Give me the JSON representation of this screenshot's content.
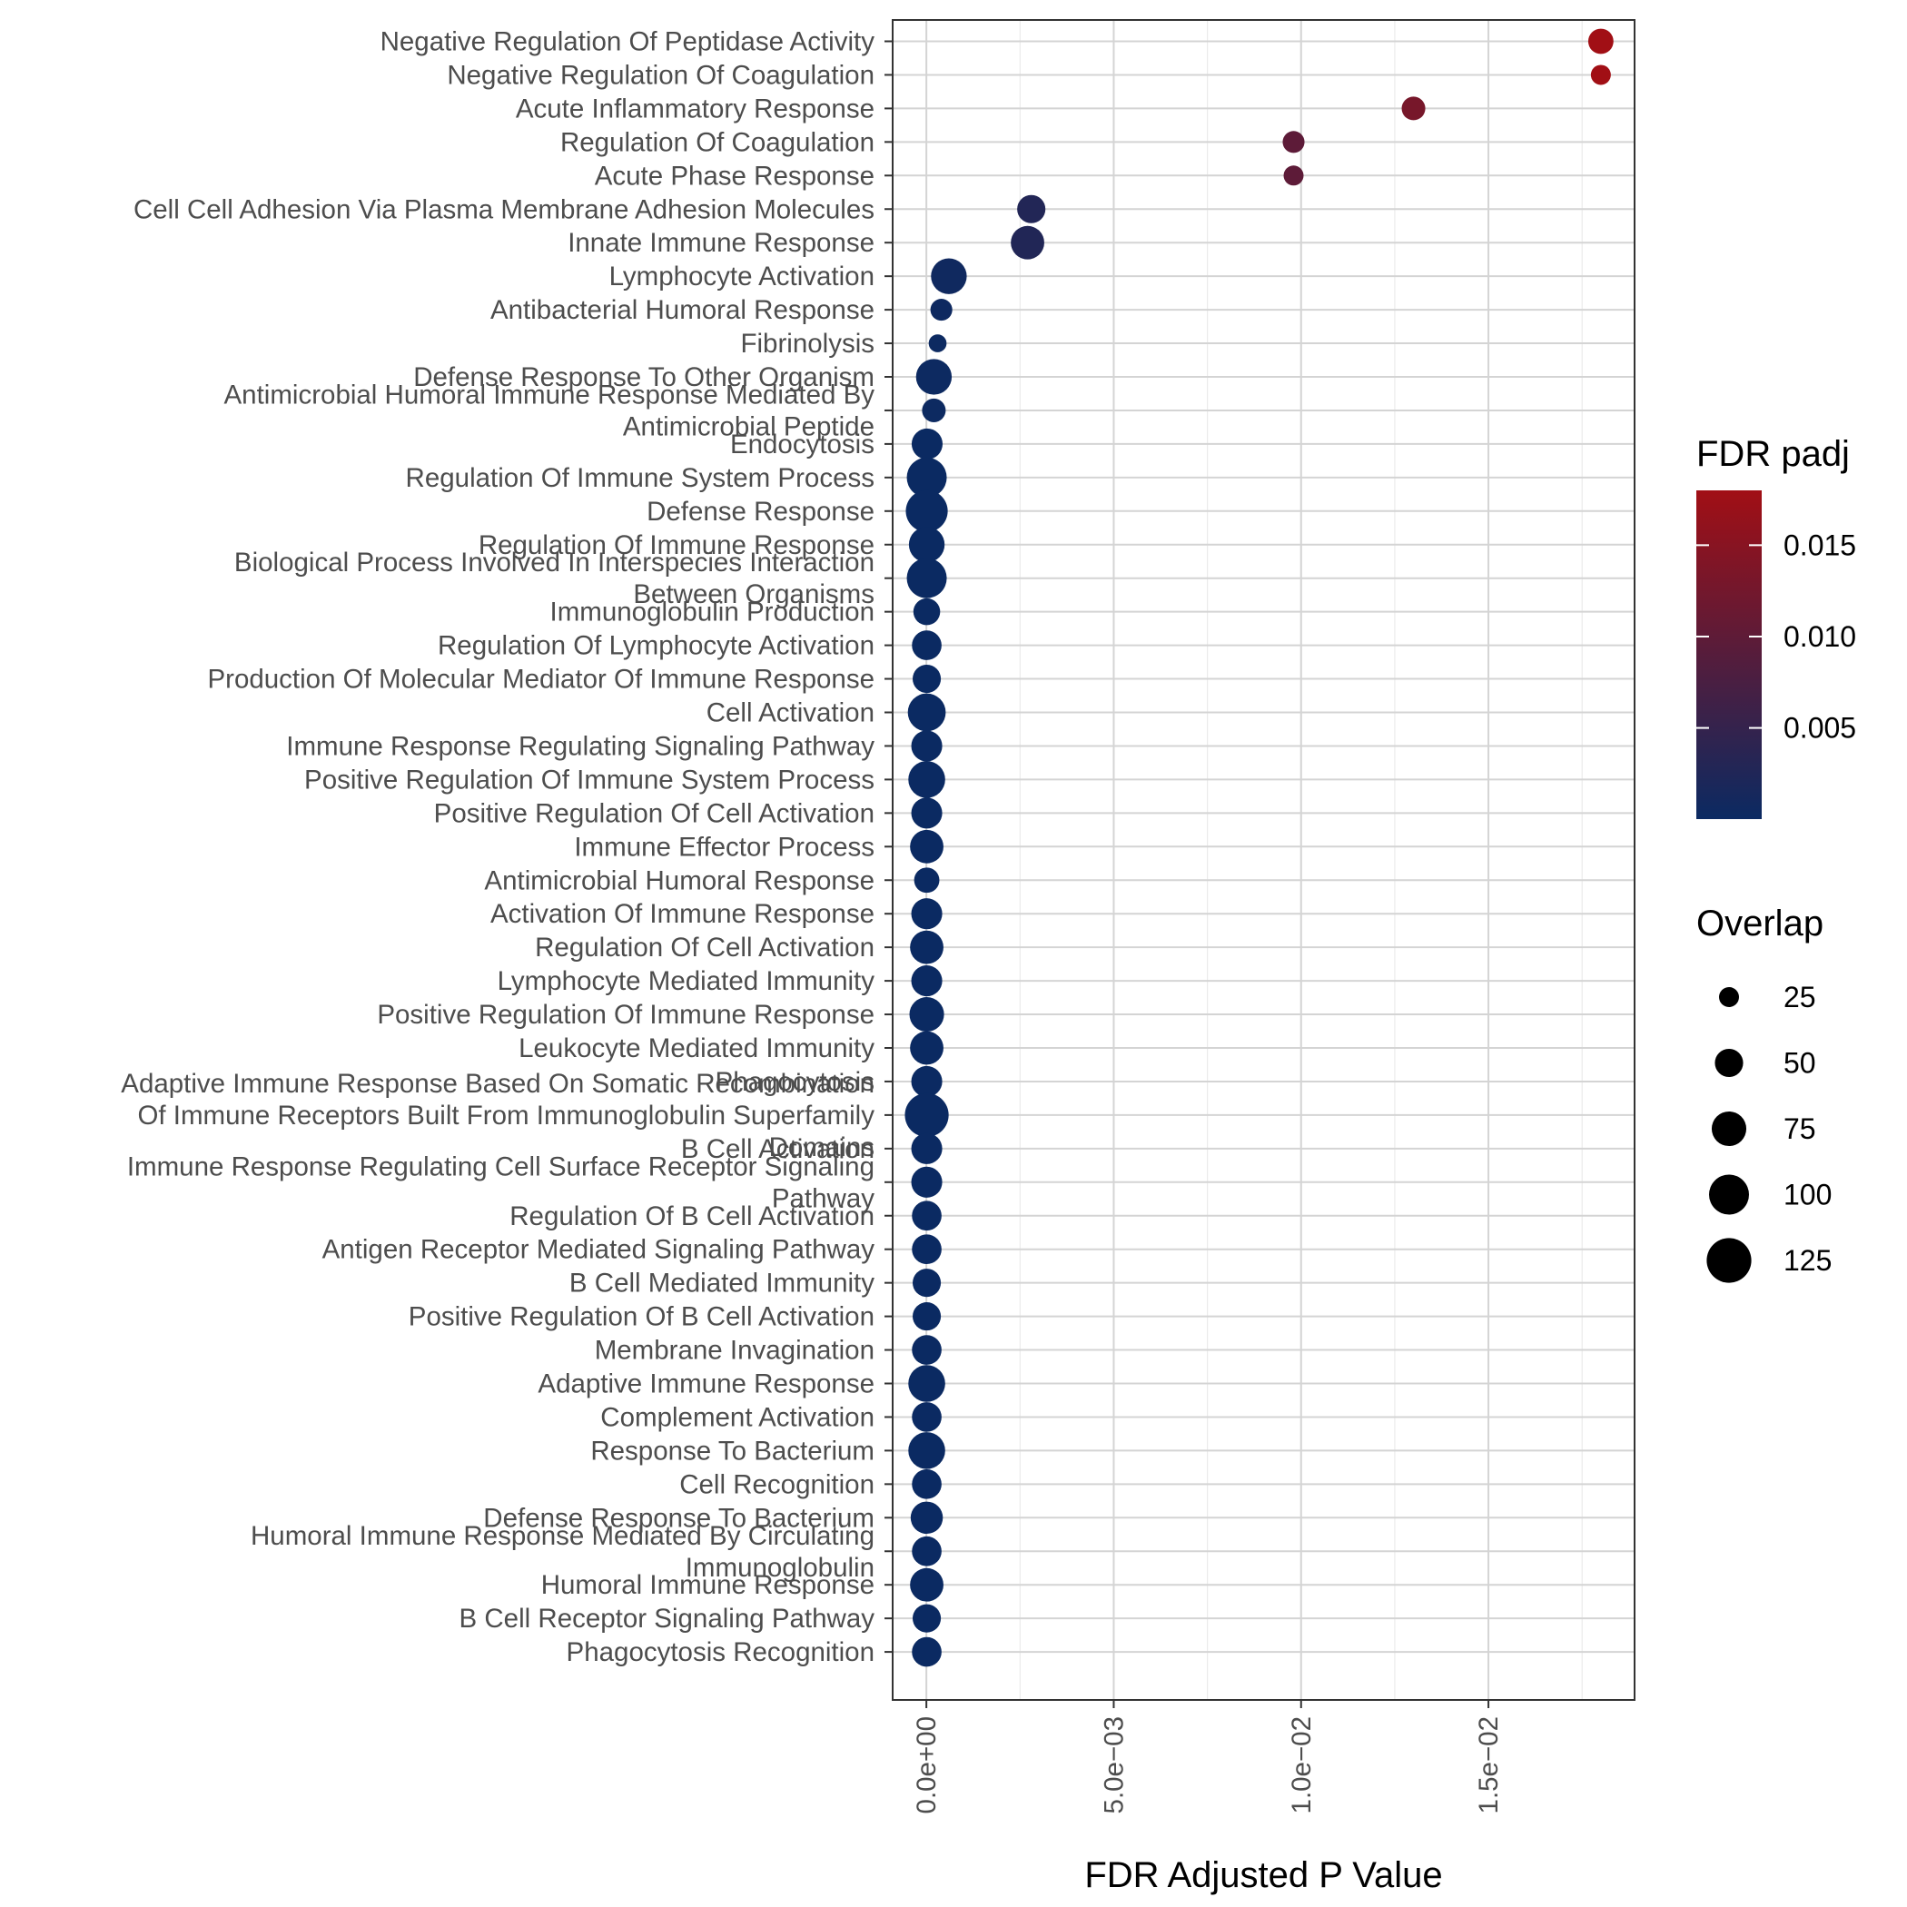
{
  "chart_data": {
    "type": "scatter",
    "xlabel": "FDR Adjusted P Value",
    "ylabel": "",
    "xlim": [
      -0.0009,
      0.0189
    ],
    "x_ticks": [
      {
        "value": 0,
        "label": "0.0e+00"
      },
      {
        "value": 0.005,
        "label": "5.0e−03"
      },
      {
        "value": 0.01,
        "label": "1.0e−02"
      },
      {
        "value": 0.015,
        "label": "1.5e−02"
      }
    ],
    "grid": true,
    "colors": {
      "low": "#0b2a62",
      "high": "#a10f15"
    },
    "color_legend": {
      "title": "FDR padj",
      "range": [
        1e-05,
        0.018
      ],
      "ticks": [
        {
          "value": 0.005,
          "label": "0.005"
        },
        {
          "value": 0.01,
          "label": "0.010"
        },
        {
          "value": 0.015,
          "label": "0.015"
        }
      ]
    },
    "size_legend": {
      "title": "Overlap",
      "entries": [
        {
          "value": 25,
          "label": "25"
        },
        {
          "value": 50,
          "label": "50"
        },
        {
          "value": 75,
          "label": "75"
        },
        {
          "value": 100,
          "label": "100"
        },
        {
          "value": 125,
          "label": "125"
        }
      ]
    },
    "points": [
      {
        "term": [
          "Negative Regulation Of Peptidase Activity"
        ],
        "fdr": 0.018,
        "overlap": 40
      },
      {
        "term": [
          "Negative Regulation Of Coagulation"
        ],
        "fdr": 0.018,
        "overlap": 25
      },
      {
        "term": [
          "Acute Inflammatory Response"
        ],
        "fdr": 0.013,
        "overlap": 35
      },
      {
        "term": [
          "Regulation Of Coagulation"
        ],
        "fdr": 0.0098,
        "overlap": 30
      },
      {
        "term": [
          "Acute Phase Response"
        ],
        "fdr": 0.0098,
        "overlap": 25
      },
      {
        "term": [
          "Cell Cell Adhesion Via Plasma Membrane Adhesion Molecules"
        ],
        "fdr": 0.0028,
        "overlap": 50
      },
      {
        "term": [
          "Innate Immune Response"
        ],
        "fdr": 0.0027,
        "overlap": 70
      },
      {
        "term": [
          "Lymphocyte Activation"
        ],
        "fdr": 0.0006,
        "overlap": 80
      },
      {
        "term": [
          "Antibacterial Humoral Response"
        ],
        "fdr": 0.0004,
        "overlap": 30
      },
      {
        "term": [
          "Fibrinolysis"
        ],
        "fdr": 0.0003,
        "overlap": 20
      },
      {
        "term": [
          "Defense Response To Other Organism"
        ],
        "fdr": 0.0002,
        "overlap": 80
      },
      {
        "term": [
          "Antimicrobial Humoral Immune Response Mediated By",
          "Antimicrobial Peptide"
        ],
        "fdr": 0.0002,
        "overlap": 35
      },
      {
        "term": [
          "Endocytosis"
        ],
        "fdr": 2e-05,
        "overlap": 60
      },
      {
        "term": [
          "Regulation Of Immune System Process"
        ],
        "fdr": 1e-05,
        "overlap": 100
      },
      {
        "term": [
          "Defense Response"
        ],
        "fdr": 1e-05,
        "overlap": 110
      },
      {
        "term": [
          "Regulation Of Immune Response"
        ],
        "fdr": 1e-05,
        "overlap": 80
      },
      {
        "term": [
          "Biological Process Involved In Interspecies Interaction",
          "Between Organisms"
        ],
        "fdr": 1e-05,
        "overlap": 100
      },
      {
        "term": [
          "Immunoglobulin Production"
        ],
        "fdr": 1e-05,
        "overlap": 45
      },
      {
        "term": [
          "Regulation Of Lymphocyte Activation"
        ],
        "fdr": 1e-05,
        "overlap": 55
      },
      {
        "term": [
          "Production Of Molecular Mediator Of Immune Response"
        ],
        "fdr": 1e-05,
        "overlap": 50
      },
      {
        "term": [
          "Cell Activation"
        ],
        "fdr": 1e-05,
        "overlap": 90
      },
      {
        "term": [
          "Immune Response Regulating Signaling Pathway"
        ],
        "fdr": 1e-05,
        "overlap": 60
      },
      {
        "term": [
          "Positive Regulation Of Immune System Process"
        ],
        "fdr": 1e-05,
        "overlap": 85
      },
      {
        "term": [
          "Positive Regulation Of Cell Activation"
        ],
        "fdr": 1e-05,
        "overlap": 60
      },
      {
        "term": [
          "Immune Effector Process"
        ],
        "fdr": 1e-05,
        "overlap": 70
      },
      {
        "term": [
          "Antimicrobial Humoral Response"
        ],
        "fdr": 1e-05,
        "overlap": 40
      },
      {
        "term": [
          "Activation Of Immune Response"
        ],
        "fdr": 1e-05,
        "overlap": 60
      },
      {
        "term": [
          "Regulation Of Cell Activation"
        ],
        "fdr": 1e-05,
        "overlap": 70
      },
      {
        "term": [
          "Lymphocyte Mediated Immunity"
        ],
        "fdr": 1e-05,
        "overlap": 60
      },
      {
        "term": [
          "Positive Regulation Of Immune Response"
        ],
        "fdr": 1e-05,
        "overlap": 75
      },
      {
        "term": [
          "Leukocyte Mediated Immunity"
        ],
        "fdr": 1e-05,
        "overlap": 70
      },
      {
        "term": [
          "Phagocytosis"
        ],
        "fdr": 1e-05,
        "overlap": 60
      },
      {
        "term": [
          "Adaptive Immune Response Based On Somatic Recombination",
          "Of Immune Receptors Built From Immunoglobulin Superfamily",
          "Domains"
        ],
        "fdr": 1e-05,
        "overlap": 120
      },
      {
        "term": [
          "B Cell Activation"
        ],
        "fdr": 1e-05,
        "overlap": 60
      },
      {
        "term": [
          "Immune Response Regulating Cell Surface Receptor Signaling",
          "Pathway"
        ],
        "fdr": 1e-05,
        "overlap": 60
      },
      {
        "term": [
          "Regulation Of B Cell Activation"
        ],
        "fdr": 1e-05,
        "overlap": 55
      },
      {
        "term": [
          "Antigen Receptor Mediated Signaling Pathway"
        ],
        "fdr": 1e-05,
        "overlap": 55
      },
      {
        "term": [
          "B Cell Mediated Immunity"
        ],
        "fdr": 1e-05,
        "overlap": 50
      },
      {
        "term": [
          "Positive Regulation Of B Cell Activation"
        ],
        "fdr": 1e-05,
        "overlap": 50
      },
      {
        "term": [
          "Membrane Invagination"
        ],
        "fdr": 1e-05,
        "overlap": 55
      },
      {
        "term": [
          "Adaptive Immune Response"
        ],
        "fdr": 1e-05,
        "overlap": 85
      },
      {
        "term": [
          "Complement Activation"
        ],
        "fdr": 1e-05,
        "overlap": 55
      },
      {
        "term": [
          "Response To Bacterium"
        ],
        "fdr": 1e-05,
        "overlap": 85
      },
      {
        "term": [
          "Cell Recognition"
        ],
        "fdr": 1e-05,
        "overlap": 55
      },
      {
        "term": [
          "Defense Response To Bacterium"
        ],
        "fdr": 1e-05,
        "overlap": 65
      },
      {
        "term": [
          "Humoral Immune Response Mediated By Circulating",
          "Immunoglobulin"
        ],
        "fdr": 1e-05,
        "overlap": 55
      },
      {
        "term": [
          "Humoral Immune Response"
        ],
        "fdr": 1e-05,
        "overlap": 70
      },
      {
        "term": [
          "B Cell Receptor Signaling Pathway"
        ],
        "fdr": 1e-05,
        "overlap": 50
      },
      {
        "term": [
          "Phagocytosis Recognition"
        ],
        "fdr": 1e-05,
        "overlap": 55
      }
    ]
  }
}
